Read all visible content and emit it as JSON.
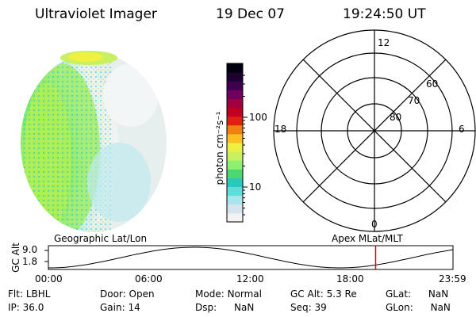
{
  "header": {
    "instrument": "Ultraviolet Imager",
    "date": "19 Dec 07",
    "time": "19:24:50 UT"
  },
  "colorbar": {
    "label": "photon cm⁻²s⁻¹",
    "ticks": [
      {
        "label": "100",
        "value": 100
      },
      {
        "label": "10",
        "value": 10
      }
    ],
    "colors": [
      "#f2f2f2",
      "#d6e4ee",
      "#a8e6ec",
      "#5de0d8",
      "#2bc8c0",
      "#4cd870",
      "#8ff070",
      "#c8f060",
      "#f0f040",
      "#f8c020",
      "#f08010",
      "#e02010",
      "#c00020",
      "#a00040",
      "#700060",
      "#400050",
      "#200030",
      "#000010"
    ]
  },
  "polar": {
    "mlt_labels": {
      "top": "12",
      "left": "18",
      "right": "6",
      "bottom": "0"
    },
    "lat_labels": [
      "60",
      "70",
      "80"
    ]
  },
  "altitude_plot": {
    "ylabel": "GC Alt",
    "yticks": [
      "9.0",
      "1.8"
    ],
    "left_title": "Geographic Lat/Lon",
    "right_title": "Apex MLat/MLT",
    "xticks": [
      "00:00",
      "06:00",
      "12:00",
      "18:00",
      "23:59"
    ],
    "cursor_hour": 19.41,
    "line_color": "#e00000"
  },
  "info": {
    "flt": {
      "label": "Flt:",
      "value": "LBHL"
    },
    "ip": {
      "label": "IP:",
      "value": "36.0"
    },
    "door": {
      "label": "Door:",
      "value": "Open"
    },
    "gain": {
      "label": "Gain:",
      "value": "14"
    },
    "mode": {
      "label": "Mode:",
      "value": "Normal"
    },
    "dsp": {
      "label": "Dsp:",
      "value": "NaN"
    },
    "gcalt": {
      "label": "GC Alt:",
      "value": "5.3 Re"
    },
    "seq": {
      "label": "Seq:",
      "value": "39"
    },
    "glat": {
      "label": "GLat:",
      "value": "NaN"
    },
    "glon": {
      "label": "GLon:",
      "value": "NaN"
    }
  }
}
